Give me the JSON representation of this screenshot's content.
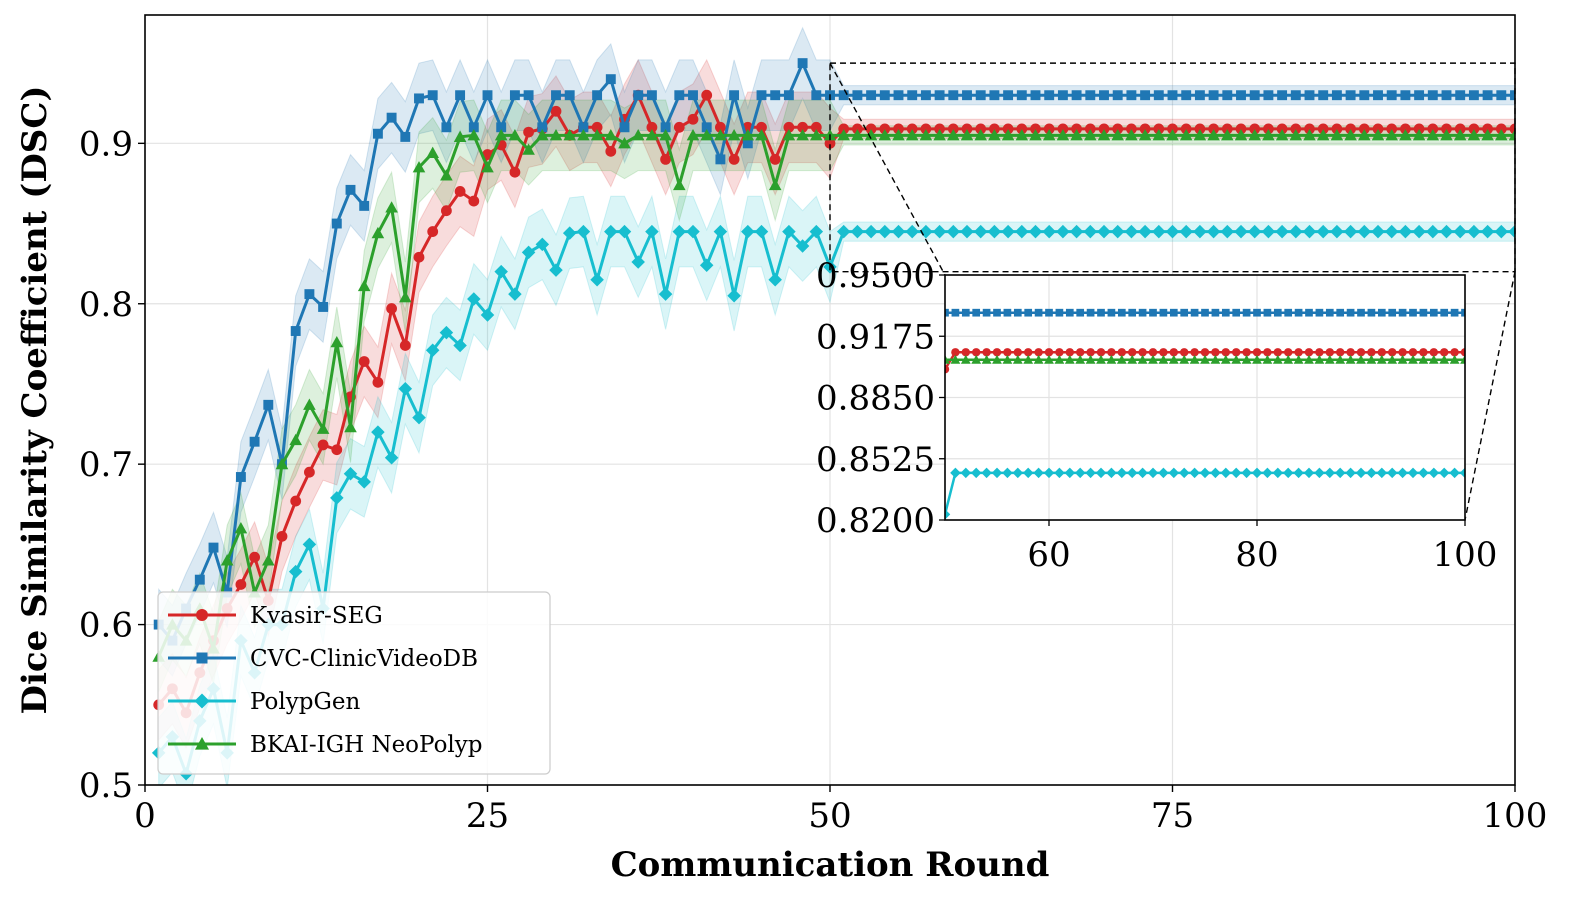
{
  "chart_data": {
    "type": "line",
    "xlabel": "Communication Round",
    "ylabel": "Dice Similarity Coefficient (DSC)",
    "xlim": [
      0,
      100
    ],
    "ylim": [
      0.5,
      0.98
    ],
    "xticks": [
      "0",
      "25",
      "50",
      "75",
      "100"
    ],
    "yticks": [
      "0.5",
      "0.6",
      "0.7",
      "0.8",
      "0.9"
    ],
    "grid": true,
    "legend_position": "bottom-left",
    "shaded_band": "±std",
    "x": [
      1,
      2,
      3,
      4,
      5,
      6,
      7,
      8,
      9,
      10,
      11,
      12,
      13,
      14,
      15,
      16,
      17,
      18,
      19,
      20,
      21,
      22,
      23,
      24,
      25,
      26,
      27,
      28,
      29,
      30,
      31,
      32,
      33,
      34,
      35,
      36,
      37,
      38,
      39,
      40,
      41,
      42,
      43,
      44,
      45,
      46,
      47,
      48,
      49,
      50,
      51,
      52,
      53,
      54,
      55,
      56,
      57,
      58,
      59,
      60,
      61,
      62,
      63,
      64,
      65,
      66,
      67,
      68,
      69,
      70,
      71,
      72,
      73,
      74,
      75,
      76,
      77,
      78,
      79,
      80,
      81,
      82,
      83,
      84,
      85,
      86,
      87,
      88,
      89,
      90,
      91,
      92,
      93,
      94,
      95,
      96,
      97,
      98,
      99,
      100
    ],
    "series": [
      {
        "name": "Kvasir-SEG",
        "color": "#d62728",
        "marker": "circle",
        "values": [
          0.55,
          0.56,
          0.545,
          0.57,
          0.59,
          0.61,
          0.625,
          0.642,
          0.615,
          0.655,
          0.677,
          0.695,
          0.712,
          0.709,
          0.742,
          0.764,
          0.751,
          0.797,
          0.774,
          0.829,
          0.845,
          0.858,
          0.87,
          0.864,
          0.893,
          0.899,
          0.882,
          0.907,
          0.909,
          0.92,
          0.905,
          0.91,
          0.91,
          0.895,
          0.915,
          0.93,
          0.91,
          0.89,
          0.91,
          0.915,
          0.93,
          0.91,
          0.89,
          0.91,
          0.91,
          0.89,
          0.91,
          0.91,
          0.91,
          0.9,
          0.909,
          0.909,
          0.909,
          0.909,
          0.909,
          0.909,
          0.909,
          0.909,
          0.909,
          0.909,
          0.909,
          0.909,
          0.909,
          0.909,
          0.909,
          0.909,
          0.909,
          0.909,
          0.909,
          0.909,
          0.909,
          0.909,
          0.909,
          0.909,
          0.909,
          0.909,
          0.909,
          0.909,
          0.909,
          0.909,
          0.909,
          0.909,
          0.909,
          0.909,
          0.909,
          0.909,
          0.909,
          0.909,
          0.909,
          0.909,
          0.909,
          0.909,
          0.909,
          0.909,
          0.909,
          0.909,
          0.909,
          0.909,
          0.909,
          0.909
        ]
      },
      {
        "name": "CVC-ClinicVideoDB",
        "color": "#1f77b4",
        "marker": "square",
        "values": [
          0.6,
          0.59,
          0.61,
          0.628,
          0.648,
          0.62,
          0.692,
          0.714,
          0.737,
          0.7,
          0.783,
          0.806,
          0.798,
          0.85,
          0.871,
          0.861,
          0.906,
          0.916,
          0.904,
          0.928,
          0.93,
          0.91,
          0.93,
          0.91,
          0.93,
          0.91,
          0.93,
          0.93,
          0.91,
          0.93,
          0.93,
          0.91,
          0.93,
          0.94,
          0.91,
          0.93,
          0.93,
          0.91,
          0.93,
          0.93,
          0.91,
          0.89,
          0.93,
          0.9,
          0.93,
          0.93,
          0.93,
          0.95,
          0.93,
          0.93,
          0.93,
          0.93,
          0.93,
          0.93,
          0.93,
          0.93,
          0.93,
          0.93,
          0.93,
          0.93,
          0.93,
          0.93,
          0.93,
          0.93,
          0.93,
          0.93,
          0.93,
          0.93,
          0.93,
          0.93,
          0.93,
          0.93,
          0.93,
          0.93,
          0.93,
          0.93,
          0.93,
          0.93,
          0.93,
          0.93,
          0.93,
          0.93,
          0.93,
          0.93,
          0.93,
          0.93,
          0.93,
          0.93,
          0.93,
          0.93,
          0.93,
          0.93,
          0.93,
          0.93,
          0.93,
          0.93,
          0.93,
          0.93,
          0.93,
          0.93
        ]
      },
      {
        "name": "PolypGen",
        "color": "#17becf",
        "marker": "diamond",
        "values": [
          0.52,
          0.53,
          0.507,
          0.54,
          0.56,
          0.52,
          0.59,
          0.57,
          0.6,
          0.6,
          0.633,
          0.65,
          0.61,
          0.679,
          0.694,
          0.689,
          0.72,
          0.704,
          0.747,
          0.729,
          0.771,
          0.782,
          0.774,
          0.803,
          0.793,
          0.82,
          0.806,
          0.832,
          0.837,
          0.821,
          0.844,
          0.845,
          0.815,
          0.845,
          0.845,
          0.826,
          0.845,
          0.806,
          0.845,
          0.845,
          0.824,
          0.845,
          0.805,
          0.845,
          0.845,
          0.815,
          0.845,
          0.836,
          0.845,
          0.823,
          0.845,
          0.845,
          0.845,
          0.845,
          0.845,
          0.845,
          0.845,
          0.845,
          0.845,
          0.845,
          0.845,
          0.845,
          0.845,
          0.845,
          0.845,
          0.845,
          0.845,
          0.845,
          0.845,
          0.845,
          0.845,
          0.845,
          0.845,
          0.845,
          0.845,
          0.845,
          0.845,
          0.845,
          0.845,
          0.845,
          0.845,
          0.845,
          0.845,
          0.845,
          0.845,
          0.845,
          0.845,
          0.845,
          0.845,
          0.845,
          0.845,
          0.845,
          0.845,
          0.845,
          0.845,
          0.845,
          0.845,
          0.845,
          0.845,
          0.845
        ]
      },
      {
        "name": "BKAI-IGH NeoPolyp",
        "color": "#2ca02c",
        "marker": "triangle",
        "values": [
          0.58,
          0.6,
          0.59,
          0.61,
          0.585,
          0.64,
          0.66,
          0.62,
          0.64,
          0.7,
          0.715,
          0.737,
          0.722,
          0.776,
          0.723,
          0.811,
          0.844,
          0.86,
          0.804,
          0.885,
          0.894,
          0.88,
          0.904,
          0.905,
          0.885,
          0.905,
          0.905,
          0.896,
          0.905,
          0.905,
          0.905,
          0.905,
          0.905,
          0.905,
          0.9,
          0.905,
          0.905,
          0.905,
          0.874,
          0.905,
          0.905,
          0.905,
          0.905,
          0.905,
          0.905,
          0.874,
          0.905,
          0.905,
          0.905,
          0.905,
          0.905,
          0.905,
          0.905,
          0.905,
          0.905,
          0.905,
          0.905,
          0.905,
          0.905,
          0.905,
          0.905,
          0.905,
          0.905,
          0.905,
          0.905,
          0.905,
          0.905,
          0.905,
          0.905,
          0.905,
          0.905,
          0.905,
          0.905,
          0.905,
          0.905,
          0.905,
          0.905,
          0.905,
          0.905,
          0.905,
          0.905,
          0.905,
          0.905,
          0.905,
          0.905,
          0.905,
          0.905,
          0.905,
          0.905,
          0.905,
          0.905,
          0.905,
          0.905,
          0.905,
          0.905,
          0.905,
          0.905,
          0.905,
          0.905,
          0.905
        ]
      }
    ],
    "inset": {
      "xlim": [
        50,
        100
      ],
      "ylim": [
        0.82,
        0.95
      ],
      "xticks": [
        "60",
        "80",
        "100"
      ],
      "yticks": [
        "0.8200",
        "0.8525",
        "0.8850",
        "0.9175",
        "0.9500"
      ]
    }
  }
}
